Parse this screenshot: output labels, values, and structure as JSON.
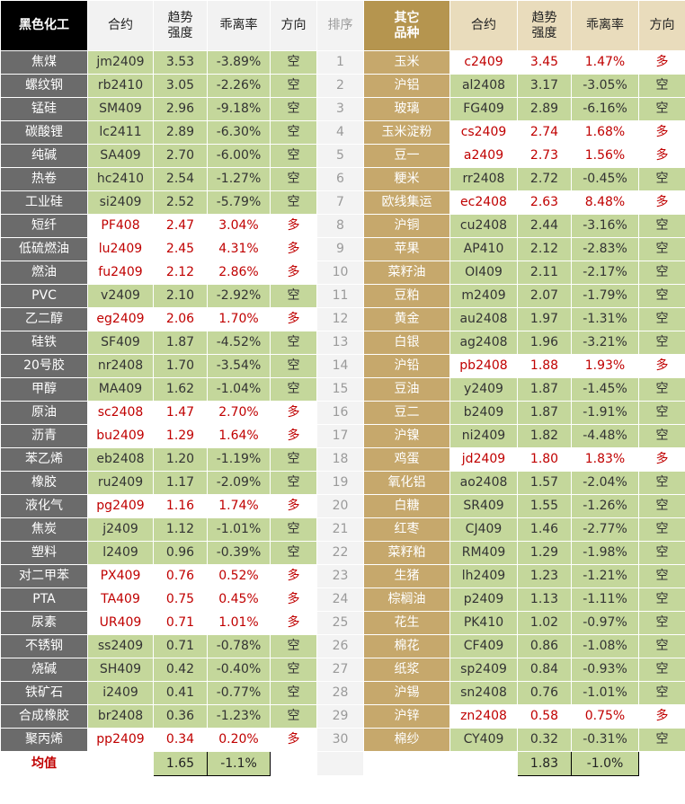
{
  "header": {
    "left": [
      "黑色化工",
      "合约",
      "趋势\n强度",
      "乖离率",
      "方向"
    ],
    "rank": "排序",
    "right": [
      "其它\n品种",
      "合约",
      "趋势\n强度",
      "乖离率",
      "方向"
    ]
  },
  "rows": [
    {
      "rank": "1",
      "left": [
        "焦煤",
        "jm2409",
        "3.53",
        "-3.89%",
        "空"
      ],
      "right": [
        "玉米",
        "c2409",
        "3.45",
        "1.47%",
        "多"
      ]
    },
    {
      "rank": "2",
      "left": [
        "螺纹钢",
        "rb2410",
        "3.05",
        "-2.26%",
        "空"
      ],
      "right": [
        "沪铝",
        "al2408",
        "3.17",
        "-3.05%",
        "空"
      ]
    },
    {
      "rank": "3",
      "left": [
        "锰硅",
        "SM409",
        "2.96",
        "-9.18%",
        "空"
      ],
      "right": [
        "玻璃",
        "FG409",
        "2.89",
        "-6.16%",
        "空"
      ]
    },
    {
      "rank": "4",
      "left": [
        "碳酸锂",
        "lc2411",
        "2.89",
        "-6.30%",
        "空"
      ],
      "right": [
        "玉米淀粉",
        "cs2409",
        "2.74",
        "1.68%",
        "多"
      ]
    },
    {
      "rank": "5",
      "left": [
        "纯碱",
        "SA409",
        "2.70",
        "-6.00%",
        "空"
      ],
      "right": [
        "豆一",
        "a2409",
        "2.73",
        "1.56%",
        "多"
      ]
    },
    {
      "rank": "6",
      "left": [
        "热卷",
        "hc2410",
        "2.54",
        "-1.27%",
        "空"
      ],
      "right": [
        "粳米",
        "rr2408",
        "2.72",
        "-0.45%",
        "空"
      ]
    },
    {
      "rank": "7",
      "left": [
        "工业硅",
        "si2409",
        "2.52",
        "-5.79%",
        "空"
      ],
      "right": [
        "欧线集运",
        "ec2408",
        "2.63",
        "8.48%",
        "多"
      ]
    },
    {
      "rank": "8",
      "left": [
        "短纤",
        "PF408",
        "2.47",
        "3.04%",
        "多"
      ],
      "right": [
        "沪铜",
        "cu2408",
        "2.44",
        "-3.16%",
        "空"
      ]
    },
    {
      "rank": "9",
      "left": [
        "低硫燃油",
        "lu2409",
        "2.45",
        "4.31%",
        "多"
      ],
      "right": [
        "苹果",
        "AP410",
        "2.12",
        "-2.83%",
        "空"
      ]
    },
    {
      "rank": "10",
      "left": [
        "燃油",
        "fu2409",
        "2.12",
        "2.86%",
        "多"
      ],
      "right": [
        "菜籽油",
        "OI409",
        "2.11",
        "-2.17%",
        "空"
      ]
    },
    {
      "rank": "11",
      "left": [
        "PVC",
        "v2409",
        "2.10",
        "-2.92%",
        "空"
      ],
      "right": [
        "豆粕",
        "m2409",
        "2.07",
        "-1.79%",
        "空"
      ]
    },
    {
      "rank": "12",
      "left": [
        "乙二醇",
        "eg2409",
        "2.06",
        "1.70%",
        "多"
      ],
      "right": [
        "黄金",
        "au2408",
        "1.97",
        "-1.31%",
        "空"
      ]
    },
    {
      "rank": "13",
      "left": [
        "硅铁",
        "SF409",
        "1.87",
        "-4.52%",
        "空"
      ],
      "right": [
        "白银",
        "ag2408",
        "1.96",
        "-3.21%",
        "空"
      ]
    },
    {
      "rank": "14",
      "left": [
        "20号胶",
        "nr2408",
        "1.70",
        "-3.54%",
        "空"
      ],
      "right": [
        "沪铅",
        "pb2408",
        "1.88",
        "1.93%",
        "多"
      ]
    },
    {
      "rank": "15",
      "left": [
        "甲醇",
        "MA409",
        "1.62",
        "-1.04%",
        "空"
      ],
      "right": [
        "豆油",
        "y2409",
        "1.87",
        "-1.45%",
        "空"
      ]
    },
    {
      "rank": "16",
      "left": [
        "原油",
        "sc2408",
        "1.47",
        "2.70%",
        "多"
      ],
      "right": [
        "豆二",
        "b2409",
        "1.87",
        "-1.91%",
        "空"
      ]
    },
    {
      "rank": "17",
      "left": [
        "沥青",
        "bu2409",
        "1.29",
        "1.64%",
        "多"
      ],
      "right": [
        "沪镍",
        "ni2409",
        "1.82",
        "-4.48%",
        "空"
      ]
    },
    {
      "rank": "18",
      "left": [
        "苯乙烯",
        "eb2408",
        "1.20",
        "-1.19%",
        "空"
      ],
      "right": [
        "鸡蛋",
        "jd2409",
        "1.80",
        "1.83%",
        "多"
      ]
    },
    {
      "rank": "19",
      "left": [
        "橡胶",
        "ru2409",
        "1.17",
        "-2.09%",
        "空"
      ],
      "right": [
        "氧化铝",
        "ao2408",
        "1.57",
        "-2.04%",
        "空"
      ]
    },
    {
      "rank": "20",
      "left": [
        "液化气",
        "pg2409",
        "1.16",
        "1.74%",
        "多"
      ],
      "right": [
        "白糖",
        "SR409",
        "1.55",
        "-1.26%",
        "空"
      ]
    },
    {
      "rank": "21",
      "left": [
        "焦炭",
        "j2409",
        "1.12",
        "-1.01%",
        "空"
      ],
      "right": [
        "红枣",
        "CJ409",
        "1.46",
        "-2.77%",
        "空"
      ]
    },
    {
      "rank": "22",
      "left": [
        "塑料",
        "l2409",
        "0.96",
        "-0.39%",
        "空"
      ],
      "right": [
        "菜籽粕",
        "RM409",
        "1.29",
        "-1.98%",
        "空"
      ]
    },
    {
      "rank": "23",
      "left": [
        "对二甲苯",
        "PX409",
        "0.76",
        "0.52%",
        "多"
      ],
      "right": [
        "生猪",
        "lh2409",
        "1.23",
        "-1.21%",
        "空"
      ]
    },
    {
      "rank": "24",
      "left": [
        "PTA",
        "TA409",
        "0.75",
        "0.45%",
        "多"
      ],
      "right": [
        "棕榈油",
        "p2409",
        "1.13",
        "-1.11%",
        "空"
      ]
    },
    {
      "rank": "25",
      "left": [
        "尿素",
        "UR409",
        "0.71",
        "1.01%",
        "多"
      ],
      "right": [
        "花生",
        "PK410",
        "1.02",
        "-0.97%",
        "空"
      ]
    },
    {
      "rank": "26",
      "left": [
        "不锈钢",
        "ss2409",
        "0.71",
        "-0.78%",
        "空"
      ],
      "right": [
        "棉花",
        "CF409",
        "0.86",
        "-1.08%",
        "空"
      ]
    },
    {
      "rank": "27",
      "left": [
        "烧碱",
        "SH409",
        "0.42",
        "-0.40%",
        "空"
      ],
      "right": [
        "纸浆",
        "sp2409",
        "0.84",
        "-0.93%",
        "空"
      ]
    },
    {
      "rank": "28",
      "left": [
        "铁矿石",
        "i2409",
        "0.41",
        "-0.77%",
        "空"
      ],
      "right": [
        "沪锡",
        "sn2408",
        "0.76",
        "-1.01%",
        "空"
      ]
    },
    {
      "rank": "29",
      "left": [
        "合成橡胶",
        "br2408",
        "0.36",
        "-1.23%",
        "空"
      ],
      "right": [
        "沪锌",
        "zn2408",
        "0.58",
        "0.75%",
        "多"
      ]
    },
    {
      "rank": "30",
      "left": [
        "聚丙烯",
        "pp2409",
        "0.34",
        "0.20%",
        "多"
      ],
      "right": [
        "棉纱",
        "CY409",
        "0.32",
        "-0.31%",
        "空"
      ]
    }
  ],
  "footer": {
    "label": "均值",
    "left": [
      "1.65",
      "-1.1%"
    ],
    "right": [
      "1.83",
      "-1.0%"
    ]
  }
}
